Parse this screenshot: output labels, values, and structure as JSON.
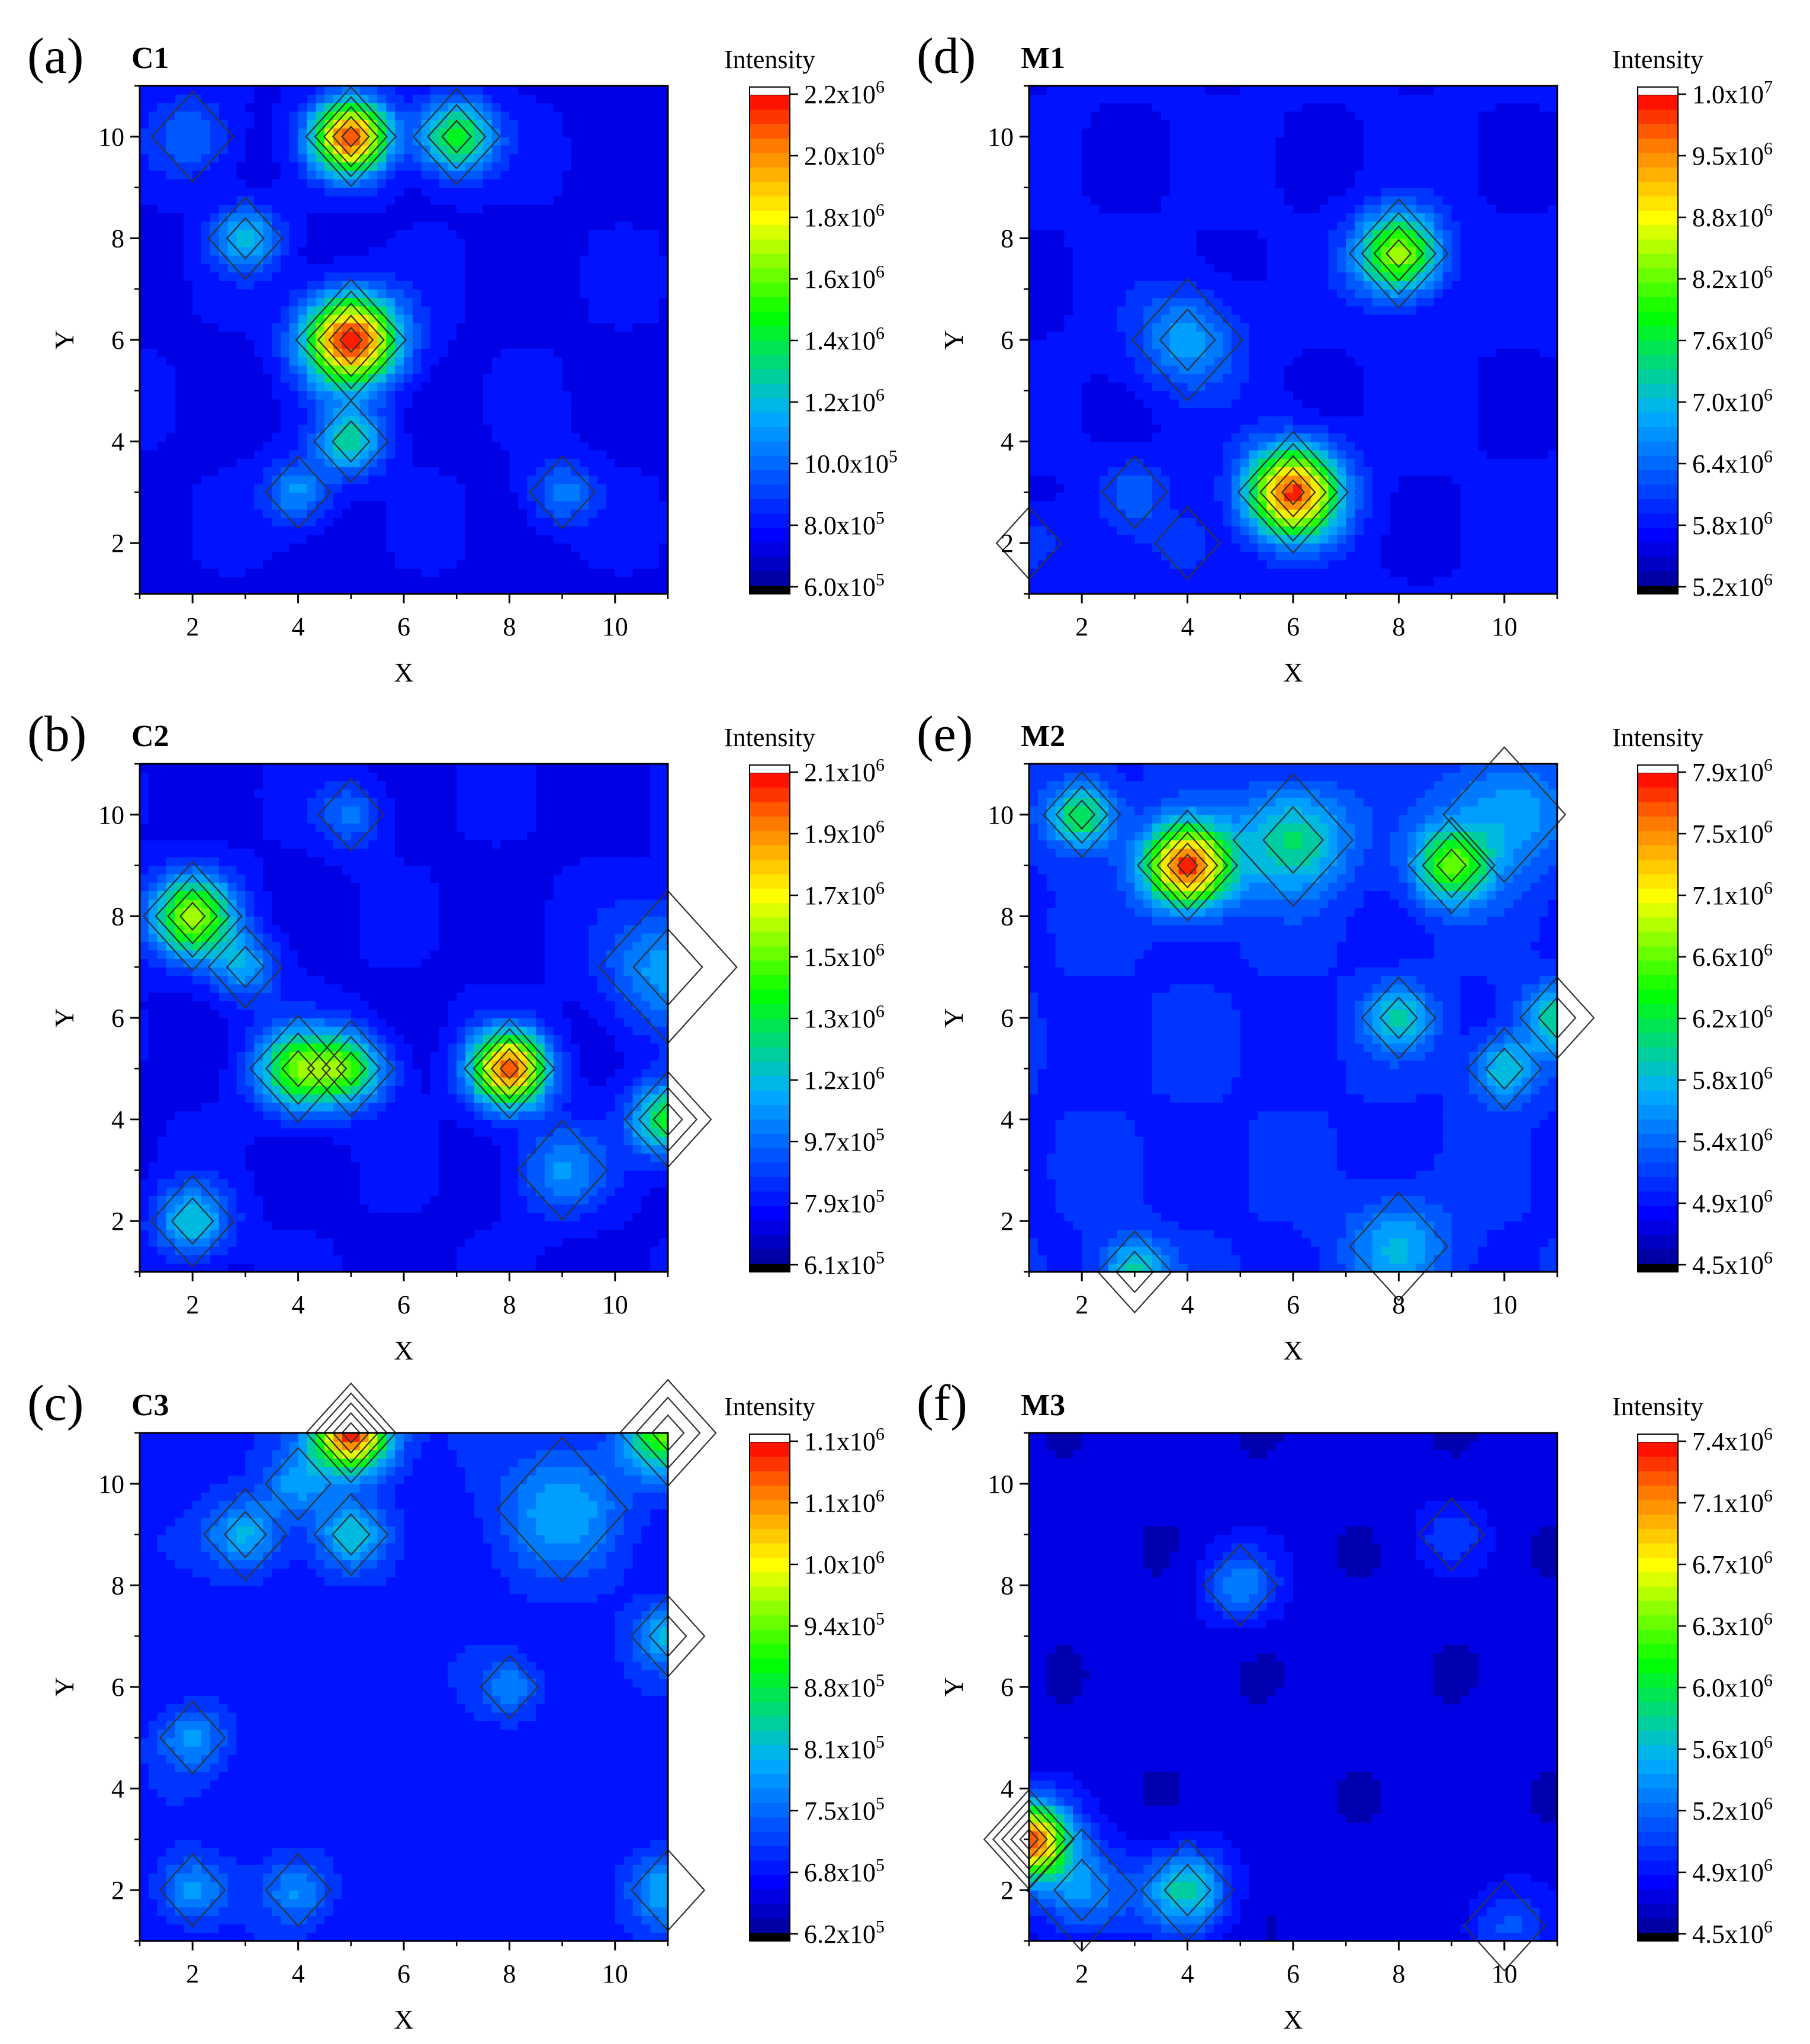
{
  "chart_data": [
    {
      "type": "heatmap",
      "panel": "(a)",
      "title": "C1",
      "xlabel": "X",
      "ylabel": "Y",
      "xlim": [
        1,
        11
      ],
      "ylim": [
        1,
        11
      ],
      "xticks": [
        2,
        4,
        6,
        8,
        10
      ],
      "yticks": [
        2,
        4,
        6,
        8,
        10
      ],
      "colorbar_title": "Intensity",
      "colorbar_labels": [
        "2.2x10^6",
        "2.0x10^6",
        "1.8x10^6",
        "1.6x10^6",
        "1.4x10^6",
        "1.2x10^6",
        "10.0x10^5",
        "8.0x10^5",
        "6.0x10^5"
      ],
      "vmin": 600000,
      "vmax": 2200000,
      "base": 750000,
      "peaks": [
        {
          "x": 5,
          "y": 10,
          "value": 2100000,
          "r": 0.9
        },
        {
          "x": 7,
          "y": 10,
          "value": 1500000,
          "r": 0.9
        },
        {
          "x": 3,
          "y": 8,
          "value": 1200000,
          "r": 0.8
        },
        {
          "x": 5,
          "y": 6,
          "value": 2200000,
          "r": 1.1
        },
        {
          "x": 5,
          "y": 4,
          "value": 1300000,
          "r": 0.8
        },
        {
          "x": 4,
          "y": 3,
          "value": 1100000,
          "r": 0.8
        },
        {
          "x": 9,
          "y": 3,
          "value": 1050000,
          "r": 0.8
        },
        {
          "x": 2,
          "y": 10,
          "value": 1000000,
          "r": 1.0
        }
      ]
    },
    {
      "type": "heatmap",
      "panel": "(b)",
      "title": "C2",
      "xlabel": "X",
      "ylabel": "Y",
      "xlim": [
        1,
        11
      ],
      "ylim": [
        1,
        11
      ],
      "xticks": [
        2,
        4,
        6,
        8,
        10
      ],
      "yticks": [
        2,
        4,
        6,
        8,
        10
      ],
      "colorbar_title": "Intensity",
      "colorbar_labels": [
        "2.1x10^6",
        "1.9x10^6",
        "1.7x10^6",
        "1.5x10^6",
        "1.3x10^6",
        "1.2x10^6",
        "9.7x10^5",
        "7.9x10^5",
        "6.1x10^5"
      ],
      "vmin": 610000,
      "vmax": 2100000,
      "base": 750000,
      "peaks": [
        {
          "x": 2,
          "y": 8,
          "value": 1600000,
          "r": 1.0
        },
        {
          "x": 3,
          "y": 7,
          "value": 1100000,
          "r": 0.8
        },
        {
          "x": 4,
          "y": 5,
          "value": 1500000,
          "r": 1.0
        },
        {
          "x": 5,
          "y": 5,
          "value": 1350000,
          "r": 0.9
        },
        {
          "x": 8,
          "y": 5,
          "value": 2000000,
          "r": 0.9
        },
        {
          "x": 11,
          "y": 4,
          "value": 1400000,
          "r": 0.9
        },
        {
          "x": 9,
          "y": 3,
          "value": 1050000,
          "r": 1.1
        },
        {
          "x": 2,
          "y": 2,
          "value": 1200000,
          "r": 0.9
        },
        {
          "x": 11,
          "y": 7,
          "value": 1100000,
          "r": 1.5
        },
        {
          "x": 5,
          "y": 10,
          "value": 1000000,
          "r": 0.8
        }
      ]
    },
    {
      "type": "heatmap",
      "panel": "(c)",
      "title": "C3",
      "xlabel": "X",
      "ylabel": "Y",
      "xlim": [
        1,
        11
      ],
      "ylim": [
        1,
        11
      ],
      "xticks": [
        2,
        4,
        6,
        8,
        10
      ],
      "yticks": [
        2,
        4,
        6,
        8,
        10
      ],
      "colorbar_title": "Intensity",
      "colorbar_labels": [
        "1.1x10^6",
        "1.1x10^6",
        "1.0x10^6",
        "9.4x10^5",
        "8.8x10^5",
        "8.1x10^5",
        "7.5x10^5",
        "6.8x10^5",
        "6.2x10^5"
      ],
      "vmin": 620000,
      "vmax": 1100000,
      "base": 680000,
      "peaks": [
        {
          "x": 5,
          "y": 11,
          "value": 1100000,
          "r": 0.9
        },
        {
          "x": 11,
          "y": 11,
          "value": 900000,
          "r": 1.0
        },
        {
          "x": 3,
          "y": 9,
          "value": 800000,
          "r": 0.9
        },
        {
          "x": 5,
          "y": 9,
          "value": 800000,
          "r": 0.8
        },
        {
          "x": 4,
          "y": 10,
          "value": 770000,
          "r": 0.8
        },
        {
          "x": 9,
          "y": 9.5,
          "value": 780000,
          "r": 1.6
        },
        {
          "x": 2,
          "y": 5,
          "value": 770000,
          "r": 0.8
        },
        {
          "x": 2,
          "y": 2,
          "value": 780000,
          "r": 0.8
        },
        {
          "x": 4,
          "y": 2,
          "value": 760000,
          "r": 0.8
        },
        {
          "x": 8,
          "y": 6,
          "value": 760000,
          "r": 0.7
        },
        {
          "x": 11,
          "y": 7,
          "value": 790000,
          "r": 0.8
        },
        {
          "x": 11,
          "y": 2,
          "value": 780000,
          "r": 0.9
        }
      ]
    },
    {
      "type": "heatmap",
      "panel": "(d)",
      "title": "M1",
      "xlabel": "X",
      "ylabel": "Y",
      "xlim": [
        1,
        11
      ],
      "ylim": [
        1,
        11
      ],
      "xticks": [
        2,
        4,
        6,
        8,
        10
      ],
      "yticks": [
        2,
        4,
        6,
        8,
        10
      ],
      "colorbar_title": "Intensity",
      "colorbar_labels": [
        "1.0x10^7",
        "9.5x10^6",
        "8.8x10^6",
        "8.2x10^6",
        "7.6x10^6",
        "7.0x10^6",
        "6.4x10^6",
        "5.8x10^6",
        "5.2x10^6"
      ],
      "vmin": 5200000,
      "vmax": 10000000,
      "base": 5700000,
      "peaks": [
        {
          "x": 8,
          "y": 7.7,
          "value": 8500000,
          "r": 1.0
        },
        {
          "x": 6,
          "y": 3,
          "value": 9800000,
          "r": 1.1
        },
        {
          "x": 4,
          "y": 6,
          "value": 6800000,
          "r": 1.2
        },
        {
          "x": 3,
          "y": 3,
          "value": 6300000,
          "r": 0.8
        },
        {
          "x": 4,
          "y": 2,
          "value": 6100000,
          "r": 0.8
        },
        {
          "x": 1,
          "y": 2,
          "value": 6200000,
          "r": 0.8
        }
      ]
    },
    {
      "type": "heatmap",
      "panel": "(e)",
      "title": "M2",
      "xlabel": "X",
      "ylabel": "Y",
      "xlim": [
        1,
        11
      ],
      "ylim": [
        1,
        11
      ],
      "xticks": [
        2,
        4,
        6,
        8,
        10
      ],
      "yticks": [
        2,
        4,
        6,
        8,
        10
      ],
      "colorbar_title": "Intensity",
      "colorbar_labels": [
        "7.9x10^6",
        "7.5x10^6",
        "7.1x10^6",
        "6.6x10^6",
        "6.2x10^6",
        "5.8x10^6",
        "5.4x10^6",
        "4.9x10^6",
        "4.5x10^6"
      ],
      "vmin": 4500000,
      "vmax": 7900000,
      "base": 5000000,
      "peaks": [
        {
          "x": 4,
          "y": 9,
          "value": 7800000,
          "r": 1.0
        },
        {
          "x": 2,
          "y": 10,
          "value": 6300000,
          "r": 0.8
        },
        {
          "x": 6,
          "y": 9.5,
          "value": 6100000,
          "r": 1.3
        },
        {
          "x": 9,
          "y": 9,
          "value": 6500000,
          "r": 0.9
        },
        {
          "x": 8,
          "y": 6,
          "value": 5900000,
          "r": 0.8
        },
        {
          "x": 10,
          "y": 5,
          "value": 5900000,
          "r": 0.8
        },
        {
          "x": 11,
          "y": 6,
          "value": 6000000,
          "r": 0.8
        },
        {
          "x": 3,
          "y": 1,
          "value": 6000000,
          "r": 0.8
        },
        {
          "x": 8,
          "y": 1.5,
          "value": 5700000,
          "r": 1.2
        },
        {
          "x": 10,
          "y": 10,
          "value": 5700000,
          "r": 1.5
        }
      ]
    },
    {
      "type": "heatmap",
      "panel": "(f)",
      "title": "M3",
      "xlabel": "X",
      "ylabel": "Y",
      "xlim": [
        1,
        11
      ],
      "ylim": [
        1,
        11
      ],
      "xticks": [
        2,
        4,
        6,
        8,
        10
      ],
      "yticks": [
        2,
        4,
        6,
        8,
        10
      ],
      "colorbar_title": "Intensity",
      "colorbar_labels": [
        "7.4x10^6",
        "7.1x10^6",
        "6.7x10^6",
        "6.3x10^6",
        "6.0x10^6",
        "5.6x10^6",
        "5.2x10^6",
        "4.9x10^6",
        "4.5x10^6"
      ],
      "vmin": 4500000,
      "vmax": 7400000,
      "base": 4700000,
      "peaks": [
        {
          "x": 1,
          "y": 3,
          "value": 7200000,
          "r": 0.9
        },
        {
          "x": 4,
          "y": 2,
          "value": 5700000,
          "r": 1.0
        },
        {
          "x": 5,
          "y": 8,
          "value": 5300000,
          "r": 0.9
        },
        {
          "x": 9,
          "y": 9,
          "value": 5000000,
          "r": 0.8
        },
        {
          "x": 10,
          "y": 1.3,
          "value": 5100000,
          "r": 1.0
        },
        {
          "x": 2,
          "y": 2,
          "value": 5400000,
          "r": 1.2
        }
      ]
    }
  ]
}
